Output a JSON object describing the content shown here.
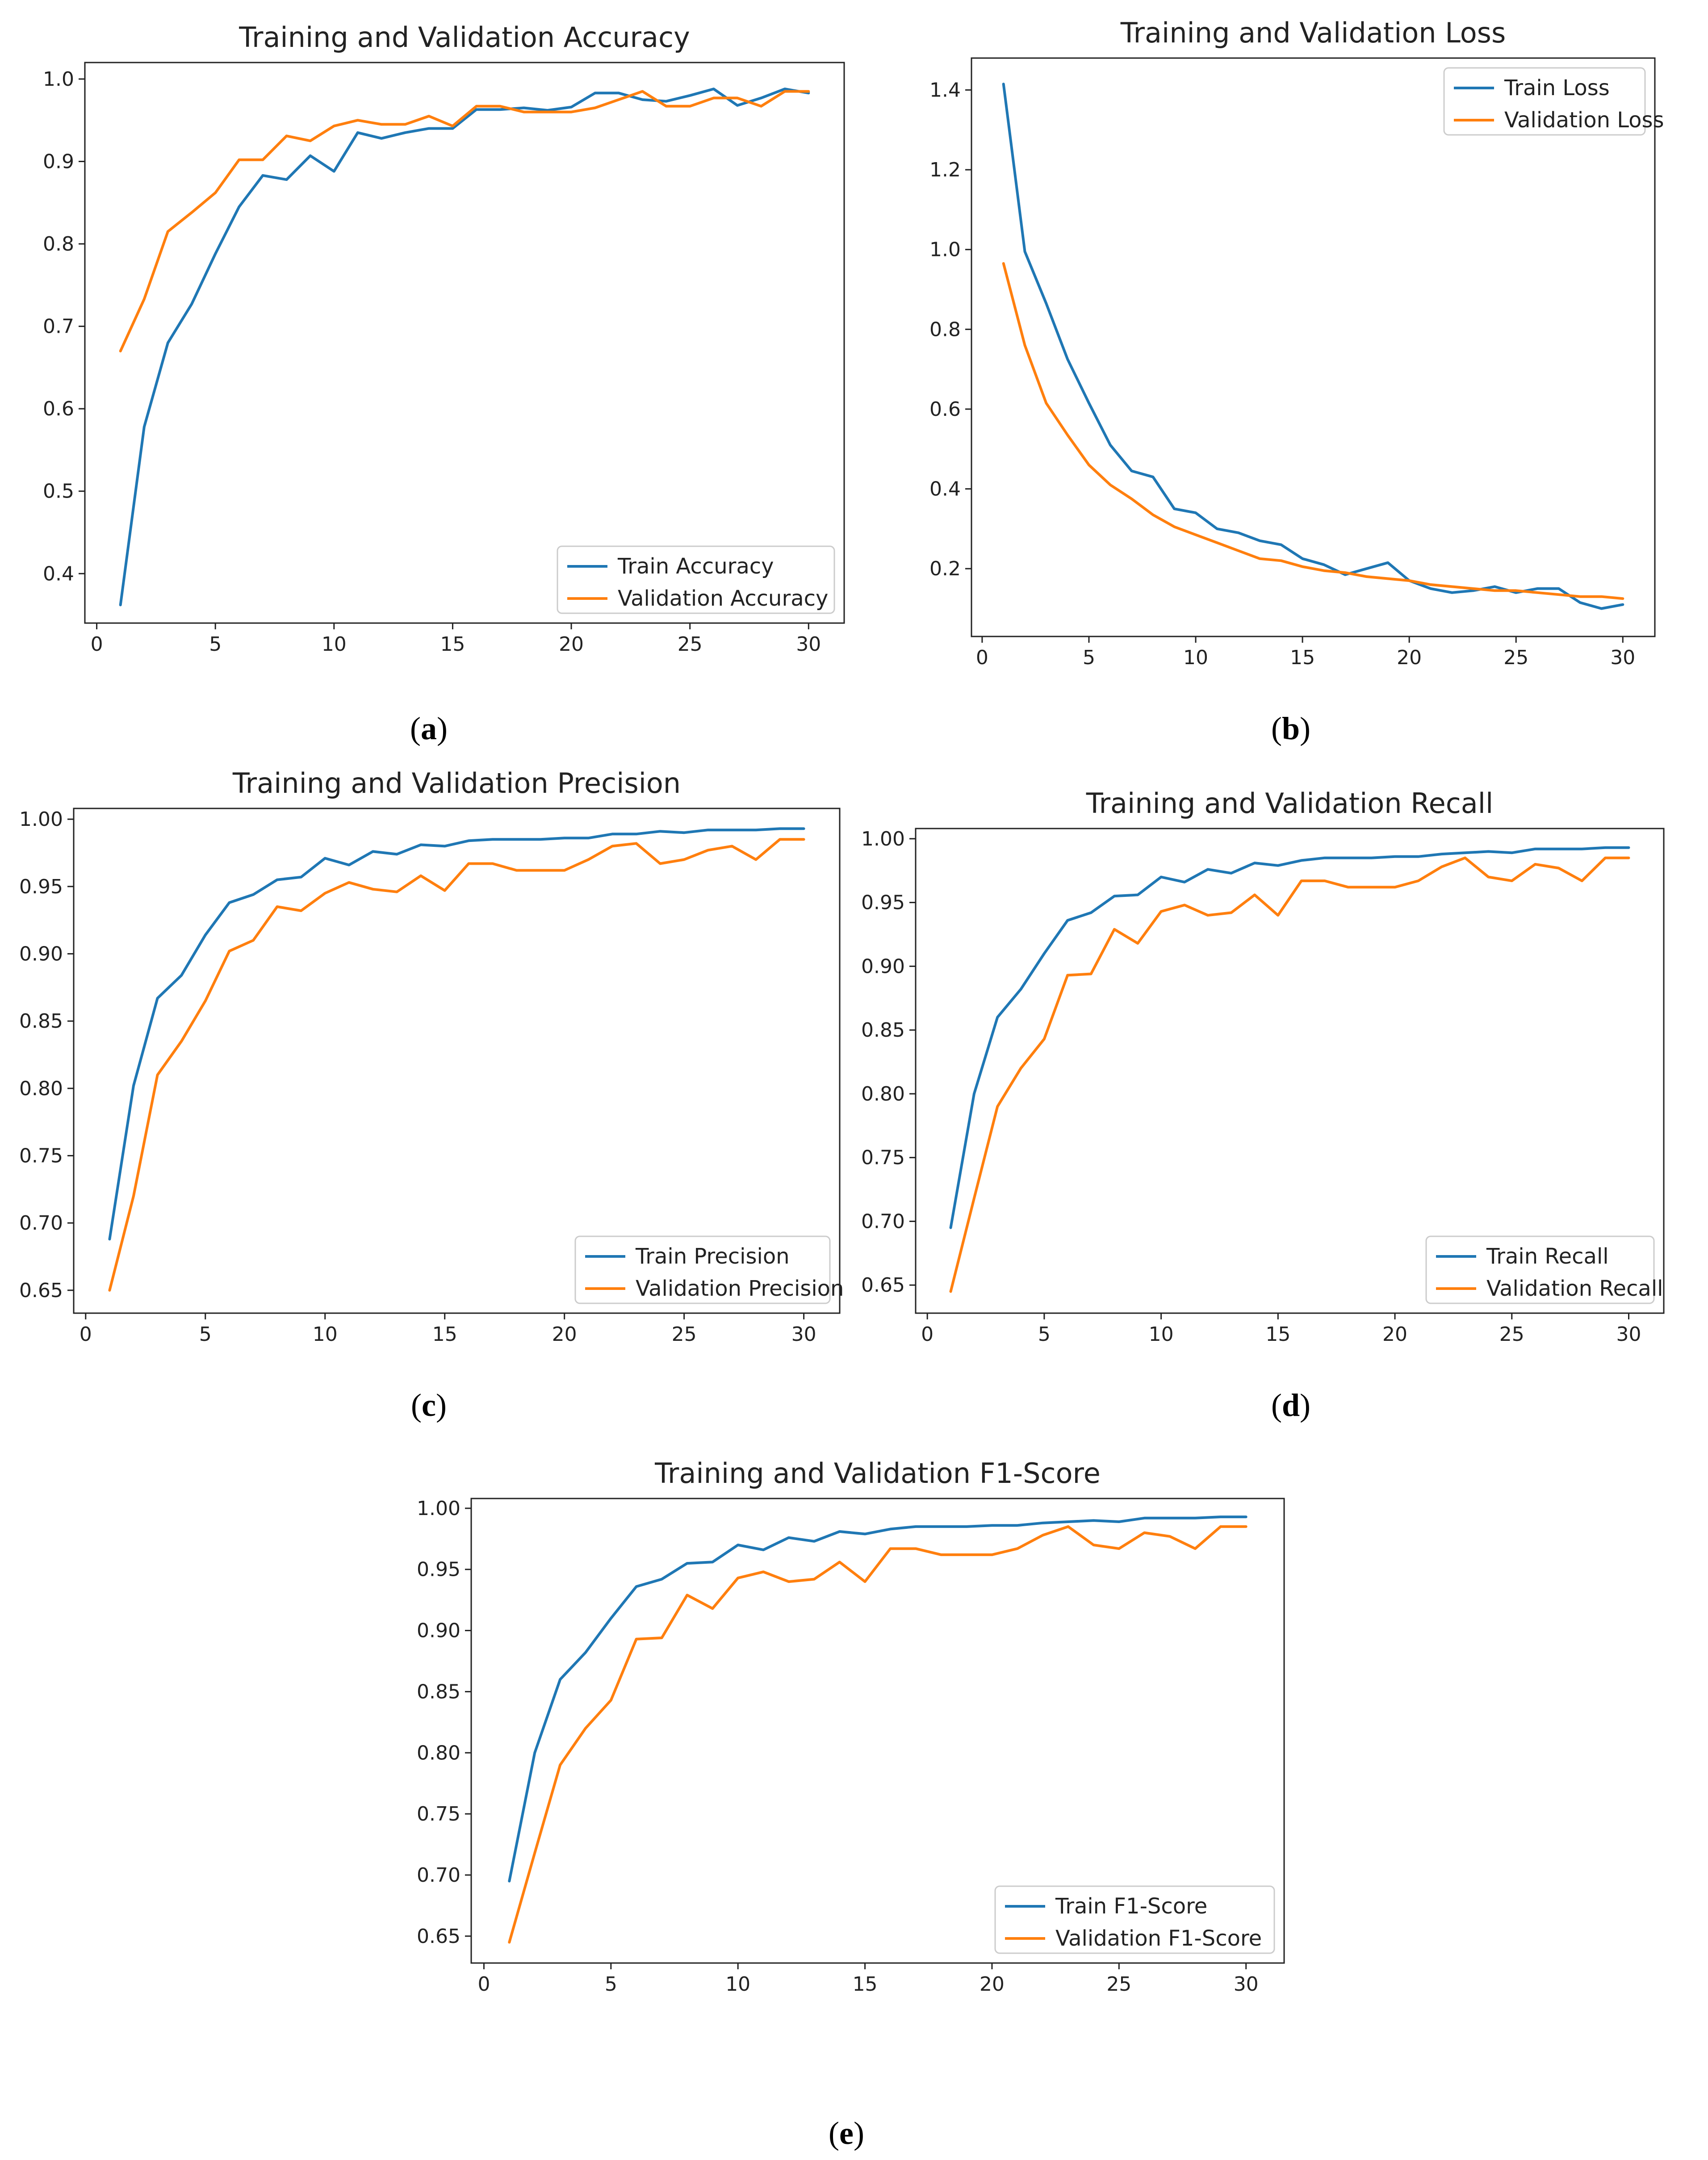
{
  "colors": {
    "train": "#1f77b4",
    "validation": "#ff7f0e"
  },
  "chart_data": [
    {
      "id": "a",
      "caption": "a",
      "type": "line",
      "title": "Training and Validation Accuracy",
      "xlabel": "",
      "ylabel": "",
      "xlim": [
        -0.5,
        31.5
      ],
      "ylim": [
        0.34,
        1.02
      ],
      "xticks": [
        0,
        5,
        10,
        15,
        20,
        25,
        30
      ],
      "yticks": [
        0.4,
        0.5,
        0.6,
        0.7,
        0.8,
        0.9,
        1.0
      ],
      "ytick_labels": [
        "0.4",
        "0.5",
        "0.6",
        "0.7",
        "0.8",
        "0.9",
        "1.0"
      ],
      "legend_position": "lower-right",
      "x": [
        1,
        2,
        3,
        4,
        5,
        6,
        7,
        8,
        9,
        10,
        11,
        12,
        13,
        14,
        15,
        16,
        17,
        18,
        19,
        20,
        21,
        22,
        23,
        24,
        25,
        26,
        27,
        28,
        29,
        30
      ],
      "series": [
        {
          "name": "Train Accuracy",
          "color_key": "train",
          "values": [
            0.362,
            0.578,
            0.68,
            0.727,
            0.788,
            0.845,
            0.883,
            0.878,
            0.907,
            0.888,
            0.935,
            0.928,
            0.935,
            0.94,
            0.94,
            0.963,
            0.963,
            0.965,
            0.962,
            0.966,
            0.983,
            0.983,
            0.975,
            0.973,
            0.98,
            0.988,
            0.968,
            0.977,
            0.988,
            0.983
          ]
        },
        {
          "name": "Validation Accuracy",
          "color_key": "validation",
          "values": [
            0.67,
            0.733,
            0.815,
            0.838,
            0.862,
            0.902,
            0.902,
            0.931,
            0.925,
            0.943,
            0.95,
            0.945,
            0.945,
            0.955,
            0.943,
            0.967,
            0.967,
            0.96,
            0.96,
            0.96,
            0.965,
            0.975,
            0.985,
            0.967,
            0.967,
            0.977,
            0.977,
            0.967,
            0.985,
            0.985
          ]
        }
      ]
    },
    {
      "id": "b",
      "caption": "b",
      "type": "line",
      "title": "Training and Validation Loss",
      "xlabel": "",
      "ylabel": "",
      "xlim": [
        -0.5,
        31.5
      ],
      "ylim": [
        0.03,
        1.48
      ],
      "xticks": [
        0,
        5,
        10,
        15,
        20,
        25,
        30
      ],
      "yticks": [
        0.2,
        0.4,
        0.6,
        0.8,
        1.0,
        1.2,
        1.4
      ],
      "ytick_labels": [
        "0.2",
        "0.4",
        "0.6",
        "0.8",
        "1.0",
        "1.2",
        "1.4"
      ],
      "legend_position": "upper-right",
      "x": [
        1,
        2,
        3,
        4,
        5,
        6,
        7,
        8,
        9,
        10,
        11,
        12,
        13,
        14,
        15,
        16,
        17,
        18,
        19,
        20,
        21,
        22,
        23,
        24,
        25,
        26,
        27,
        28,
        29,
        30
      ],
      "series": [
        {
          "name": "Train Loss",
          "color_key": "train",
          "values": [
            1.415,
            0.995,
            0.865,
            0.725,
            0.615,
            0.51,
            0.445,
            0.43,
            0.35,
            0.34,
            0.3,
            0.29,
            0.27,
            0.26,
            0.225,
            0.21,
            0.185,
            0.2,
            0.215,
            0.17,
            0.15,
            0.14,
            0.145,
            0.155,
            0.14,
            0.15,
            0.15,
            0.115,
            0.1,
            0.11
          ]
        },
        {
          "name": "Validation Loss",
          "color_key": "validation",
          "values": [
            0.965,
            0.76,
            0.615,
            0.535,
            0.46,
            0.41,
            0.375,
            0.335,
            0.305,
            0.285,
            0.265,
            0.245,
            0.225,
            0.22,
            0.205,
            0.195,
            0.19,
            0.18,
            0.175,
            0.17,
            0.16,
            0.155,
            0.15,
            0.145,
            0.145,
            0.14,
            0.135,
            0.13,
            0.13,
            0.125
          ]
        }
      ]
    },
    {
      "id": "c",
      "caption": "c",
      "type": "line",
      "title": "Training and Validation Precision",
      "xlabel": "",
      "ylabel": "",
      "xlim": [
        -0.5,
        31.5
      ],
      "ylim": [
        0.633,
        1.008
      ],
      "xticks": [
        0,
        5,
        10,
        15,
        20,
        25,
        30
      ],
      "yticks": [
        0.65,
        0.7,
        0.75,
        0.8,
        0.85,
        0.9,
        0.95,
        1.0
      ],
      "ytick_labels": [
        "0.65",
        "0.70",
        "0.75",
        "0.80",
        "0.85",
        "0.90",
        "0.95",
        "1.00"
      ],
      "legend_position": "lower-right",
      "x": [
        1,
        2,
        3,
        4,
        5,
        6,
        7,
        8,
        9,
        10,
        11,
        12,
        13,
        14,
        15,
        16,
        17,
        18,
        19,
        20,
        21,
        22,
        23,
        24,
        25,
        26,
        27,
        28,
        29,
        30
      ],
      "series": [
        {
          "name": "Train Precision",
          "color_key": "train",
          "values": [
            0.688,
            0.802,
            0.867,
            0.884,
            0.914,
            0.938,
            0.944,
            0.955,
            0.957,
            0.971,
            0.966,
            0.976,
            0.974,
            0.981,
            0.98,
            0.984,
            0.985,
            0.985,
            0.985,
            0.986,
            0.986,
            0.989,
            0.989,
            0.991,
            0.99,
            0.992,
            0.992,
            0.992,
            0.993,
            0.993
          ]
        },
        {
          "name": "Validation Precision",
          "color_key": "validation",
          "values": [
            0.65,
            0.72,
            0.81,
            0.835,
            0.865,
            0.902,
            0.91,
            0.935,
            0.932,
            0.945,
            0.953,
            0.948,
            0.946,
            0.958,
            0.947,
            0.967,
            0.967,
            0.962,
            0.962,
            0.962,
            0.97,
            0.98,
            0.982,
            0.967,
            0.97,
            0.977,
            0.98,
            0.97,
            0.985,
            0.985
          ]
        }
      ]
    },
    {
      "id": "d",
      "caption": "d",
      "type": "line",
      "title": "Training and Validation Recall",
      "xlabel": "",
      "ylabel": "",
      "xlim": [
        -0.5,
        31.5
      ],
      "ylim": [
        0.628,
        1.008
      ],
      "xticks": [
        0,
        5,
        10,
        15,
        20,
        25,
        30
      ],
      "yticks": [
        0.65,
        0.7,
        0.75,
        0.8,
        0.85,
        0.9,
        0.95,
        1.0
      ],
      "ytick_labels": [
        "0.65",
        "0.70",
        "0.75",
        "0.80",
        "0.85",
        "0.90",
        "0.95",
        "1.00"
      ],
      "legend_position": "lower-right",
      "x": [
        1,
        2,
        3,
        4,
        5,
        6,
        7,
        8,
        9,
        10,
        11,
        12,
        13,
        14,
        15,
        16,
        17,
        18,
        19,
        20,
        21,
        22,
        23,
        24,
        25,
        26,
        27,
        28,
        29,
        30
      ],
      "series": [
        {
          "name": "Train Recall",
          "color_key": "train",
          "values": [
            0.695,
            0.8,
            0.86,
            0.882,
            0.91,
            0.936,
            0.942,
            0.955,
            0.956,
            0.97,
            0.966,
            0.976,
            0.973,
            0.981,
            0.979,
            0.983,
            0.985,
            0.985,
            0.985,
            0.986,
            0.986,
            0.988,
            0.989,
            0.99,
            0.989,
            0.992,
            0.992,
            0.992,
            0.993,
            0.993
          ]
        },
        {
          "name": "Validation Recall",
          "color_key": "validation",
          "values": [
            0.645,
            0.718,
            0.79,
            0.82,
            0.843,
            0.893,
            0.894,
            0.929,
            0.918,
            0.943,
            0.948,
            0.94,
            0.942,
            0.956,
            0.94,
            0.967,
            0.967,
            0.962,
            0.962,
            0.962,
            0.967,
            0.978,
            0.985,
            0.97,
            0.967,
            0.98,
            0.977,
            0.967,
            0.985,
            0.985
          ]
        }
      ]
    },
    {
      "id": "e",
      "caption": "e",
      "type": "line",
      "title": "Training and Validation F1-Score",
      "xlabel": "",
      "ylabel": "",
      "xlim": [
        -0.5,
        31.5
      ],
      "ylim": [
        0.628,
        1.008
      ],
      "xticks": [
        0,
        5,
        10,
        15,
        20,
        25,
        30
      ],
      "yticks": [
        0.65,
        0.7,
        0.75,
        0.8,
        0.85,
        0.9,
        0.95,
        1.0
      ],
      "ytick_labels": [
        "0.65",
        "0.70",
        "0.75",
        "0.80",
        "0.85",
        "0.90",
        "0.95",
        "1.00"
      ],
      "legend_position": "lower-right",
      "x": [
        1,
        2,
        3,
        4,
        5,
        6,
        7,
        8,
        9,
        10,
        11,
        12,
        13,
        14,
        15,
        16,
        17,
        18,
        19,
        20,
        21,
        22,
        23,
        24,
        25,
        26,
        27,
        28,
        29,
        30
      ],
      "series": [
        {
          "name": "Train F1-Score",
          "color_key": "train",
          "values": [
            0.695,
            0.8,
            0.86,
            0.882,
            0.91,
            0.936,
            0.942,
            0.955,
            0.956,
            0.97,
            0.966,
            0.976,
            0.973,
            0.981,
            0.979,
            0.983,
            0.985,
            0.985,
            0.985,
            0.986,
            0.986,
            0.988,
            0.989,
            0.99,
            0.989,
            0.992,
            0.992,
            0.992,
            0.993,
            0.993
          ]
        },
        {
          "name": "Validation F1-Score",
          "color_key": "validation",
          "values": [
            0.645,
            0.718,
            0.79,
            0.82,
            0.843,
            0.893,
            0.894,
            0.929,
            0.918,
            0.943,
            0.948,
            0.94,
            0.942,
            0.956,
            0.94,
            0.967,
            0.967,
            0.962,
            0.962,
            0.962,
            0.967,
            0.978,
            0.985,
            0.97,
            0.967,
            0.98,
            0.977,
            0.967,
            0.985,
            0.985
          ]
        }
      ]
    }
  ]
}
